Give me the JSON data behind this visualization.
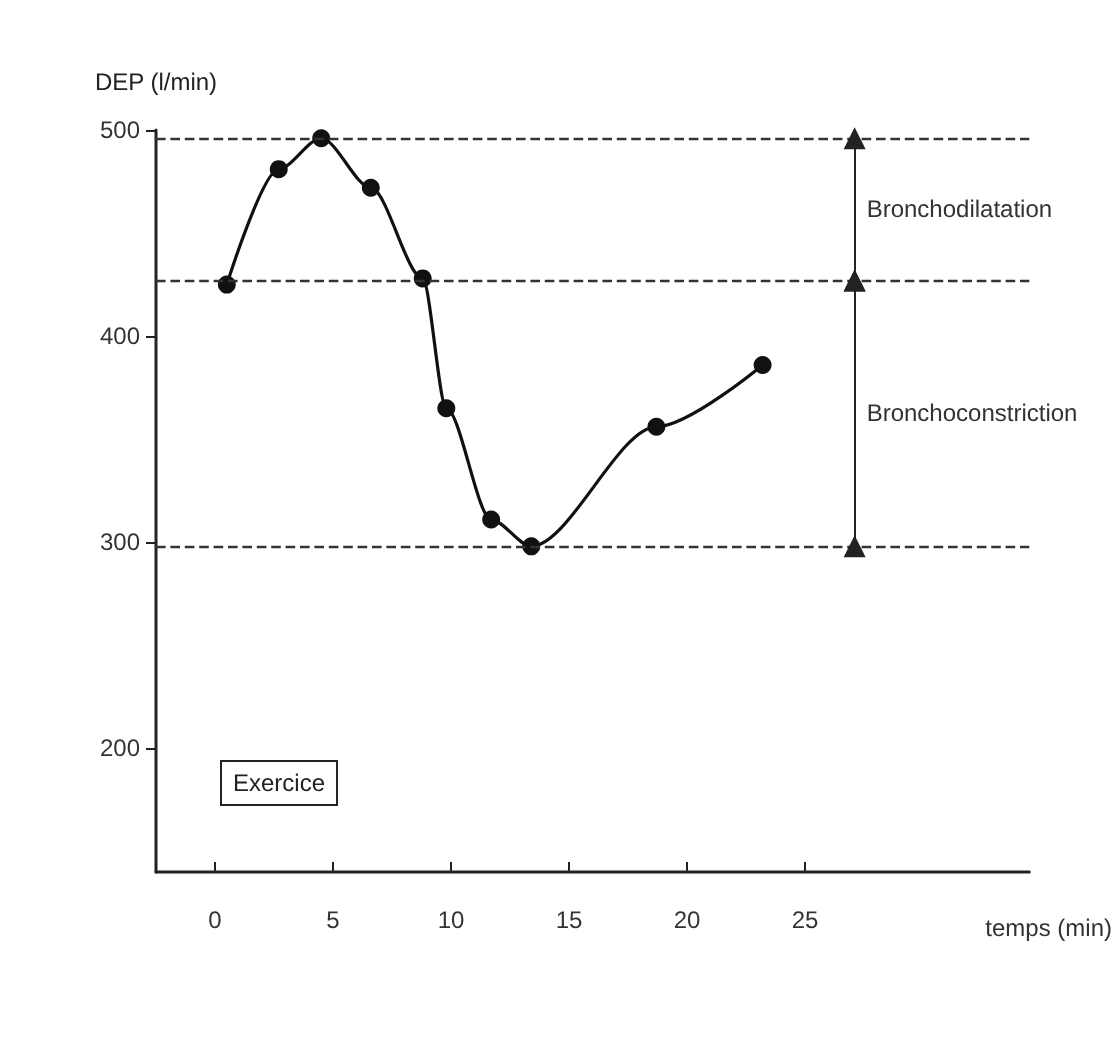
{
  "chart_data": {
    "type": "line",
    "xlabel": "temps (min)",
    "ylabel": "DEP (l/min)",
    "x": [
      0.5,
      2.7,
      4.5,
      6.6,
      8.8,
      9.8,
      11.7,
      13.4,
      18.7,
      23.2
    ],
    "series": [
      {
        "color": "#111111",
        "values": [
          425,
          481,
          496,
          472,
          428,
          365,
          311,
          298,
          356,
          386
        ]
      }
    ],
    "xlim": [
      -2.5,
      34.5
    ],
    "xticks": [
      0,
      5,
      10,
      15,
      20,
      25
    ],
    "ylim": [
      140,
      500
    ],
    "yticks": [
      200,
      300,
      400,
      500
    ],
    "grid": false,
    "marker": "circle",
    "line_style": "solid",
    "ref_lines": [
      {
        "axis": "y",
        "value": 496,
        "line_style": "dashed"
      },
      {
        "axis": "y",
        "value": 427,
        "line_style": "dashed"
      },
      {
        "axis": "y",
        "value": 298,
        "line_style": "dashed"
      }
    ],
    "annotations": [
      "Bronchodilatation",
      "Bronchoconstriction",
      "Exercice"
    ]
  }
}
